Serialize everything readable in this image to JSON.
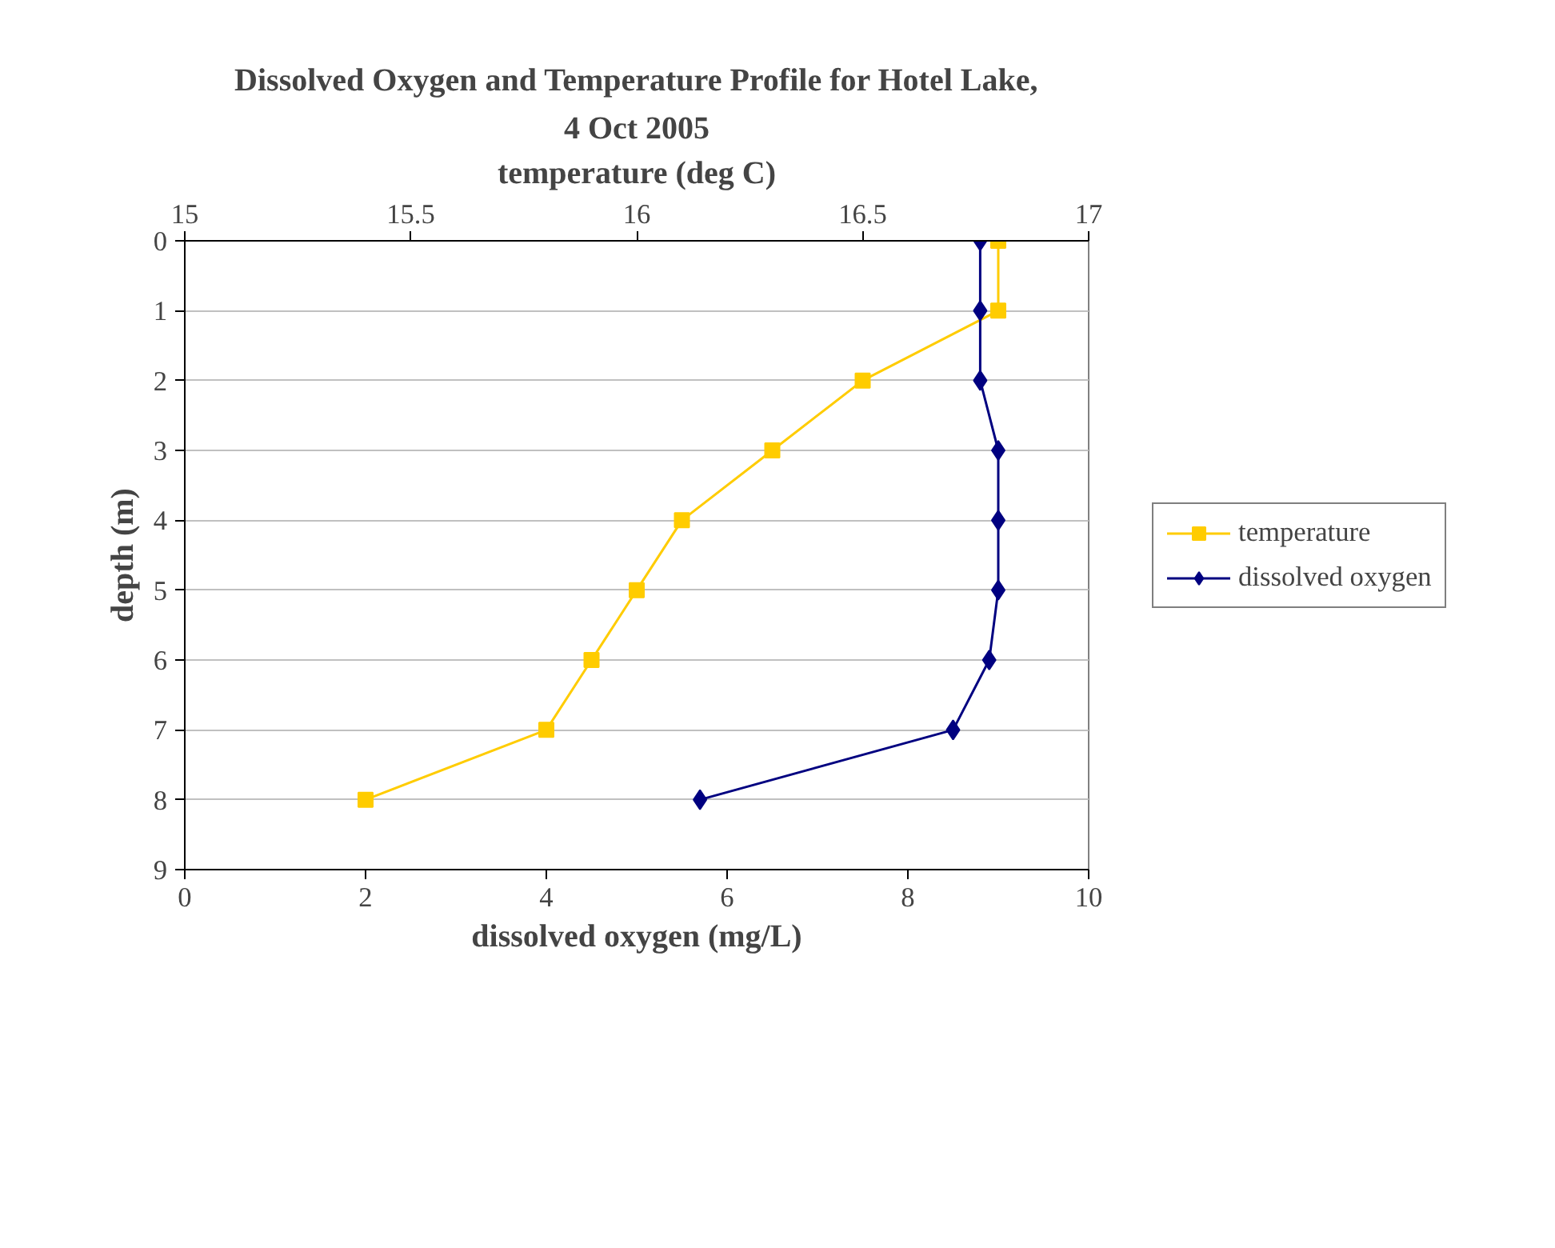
{
  "chart_data": {
    "type": "line",
    "title": "Dissolved Oxygen and Temperature Profile for Hotel Lake,",
    "subtitle": "4 Oct 2005",
    "xlabel": "dissolved oxygen (mg/L)",
    "x2label": "temperature (deg C)",
    "ylabel": "depth (m)",
    "xlim": [
      0,
      10
    ],
    "xticks": [
      0,
      2,
      4,
      6,
      8,
      10
    ],
    "x2lim": [
      15,
      17
    ],
    "x2ticks": [
      15,
      15.5,
      16,
      16.5,
      17
    ],
    "ylim": [
      9,
      0
    ],
    "yticks": [
      0,
      1,
      2,
      3,
      4,
      5,
      6,
      7,
      8,
      9
    ],
    "grid": "y",
    "legend": "right",
    "series": [
      {
        "name": "temperature",
        "color": "#ffcc00",
        "axis": "x2",
        "marker": "square",
        "x": [
          16.8,
          16.8,
          16.5,
          16.3,
          16.1,
          16.0,
          15.9,
          15.8,
          15.4
        ],
        "values": [
          0,
          1,
          2,
          3,
          4,
          5,
          6,
          7,
          8
        ]
      },
      {
        "name": "dissolved oxygen",
        "color": "#000080",
        "marker": "diamond",
        "x": [
          8.8,
          8.8,
          8.8,
          9.0,
          9.0,
          9.0,
          8.9,
          8.5,
          5.7
        ],
        "values": [
          0,
          1,
          2,
          3,
          4,
          5,
          6,
          7,
          8
        ]
      }
    ]
  }
}
